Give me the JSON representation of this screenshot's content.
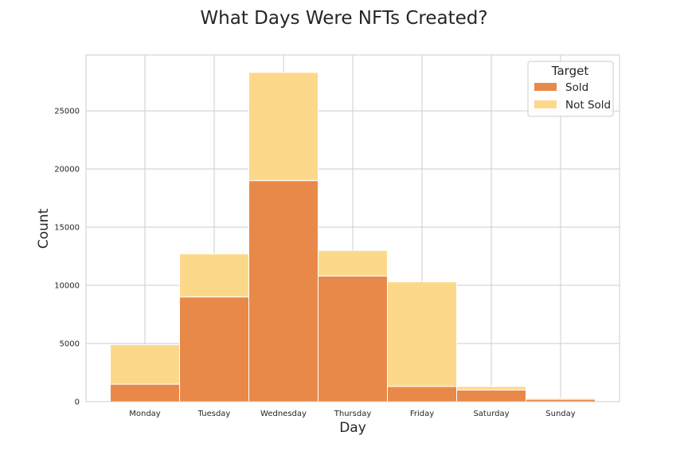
{
  "chart_data": {
    "type": "bar",
    "stacked": true,
    "title": "What Days Were NFTs Created?",
    "xlabel": "Day",
    "ylabel": "Count",
    "categories": [
      "Monday",
      "Tuesday",
      "Wednesday",
      "Thursday",
      "Friday",
      "Saturday",
      "Sunday"
    ],
    "series": [
      {
        "name": "Sold",
        "values": [
          1500,
          9000,
          19000,
          10800,
          1300,
          1000,
          200
        ]
      },
      {
        "name": "Not Sold",
        "values": [
          3400,
          3700,
          9300,
          2200,
          9000,
          300,
          100
        ]
      }
    ],
    "ylim": [
      0,
      29800
    ],
    "yticks": [
      0,
      5000,
      10000,
      15000,
      20000,
      25000
    ],
    "grid": true,
    "legend": {
      "title": "Target",
      "placement": "top-right"
    },
    "colors": {
      "Sold": "#e8894a",
      "Not Sold": "#fcd98a"
    }
  }
}
